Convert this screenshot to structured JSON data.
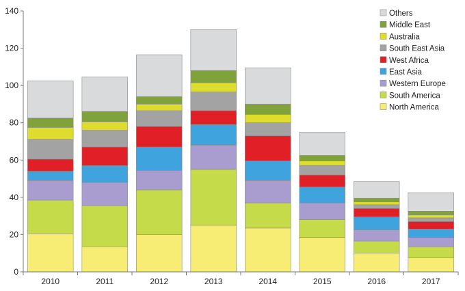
{
  "chart_data": {
    "type": "bar",
    "stacked": true,
    "title": "",
    "xlabel": "",
    "ylabel": "",
    "ylim": [
      0,
      140
    ],
    "yticks": [
      0,
      20,
      40,
      60,
      80,
      100,
      120,
      140
    ],
    "legend_position": "top-right",
    "grid": false,
    "categories": [
      "2010",
      "2011",
      "2012",
      "2013",
      "2014",
      "2015",
      "2016",
      "2017"
    ],
    "series": [
      {
        "name": "North America",
        "color": "#f7ec74",
        "values": [
          20.5,
          13.5,
          20,
          25,
          23.5,
          18.5,
          10,
          7.5
        ]
      },
      {
        "name": "South America",
        "color": "#c5db4a",
        "values": [
          18,
          22,
          24,
          30,
          13.5,
          9.5,
          6.5,
          6
        ]
      },
      {
        "name": "Western Europe",
        "color": "#a99cce",
        "values": [
          10.5,
          12.5,
          10.5,
          13,
          12,
          9,
          6,
          5
        ]
      },
      {
        "name": "East Asia",
        "color": "#3fa3de",
        "values": [
          5,
          9,
          12.5,
          11,
          10.5,
          8.5,
          7,
          4.5
        ]
      },
      {
        "name": "West Africa",
        "color": "#e01f26",
        "values": [
          6.5,
          10,
          11,
          7.5,
          13.5,
          6.5,
          4.5,
          4
        ]
      },
      {
        "name": "South East Asia",
        "color": "#a3a3a3",
        "values": [
          10.5,
          9,
          8.5,
          10,
          7,
          5,
          2,
          2
        ]
      },
      {
        "name": "Australia",
        "color": "#dedd2e",
        "values": [
          6.5,
          4.5,
          3.5,
          5,
          4.5,
          2.5,
          1.5,
          1.5
        ]
      },
      {
        "name": "Middle East",
        "color": "#7fa23b",
        "values": [
          5,
          5.5,
          4,
          6.5,
          5.5,
          3,
          2,
          2
        ]
      },
      {
        "name": "Others",
        "color": "#d9dadb",
        "values": [
          20,
          18.5,
          22.5,
          22,
          19.5,
          12.5,
          9,
          10
        ]
      }
    ]
  }
}
